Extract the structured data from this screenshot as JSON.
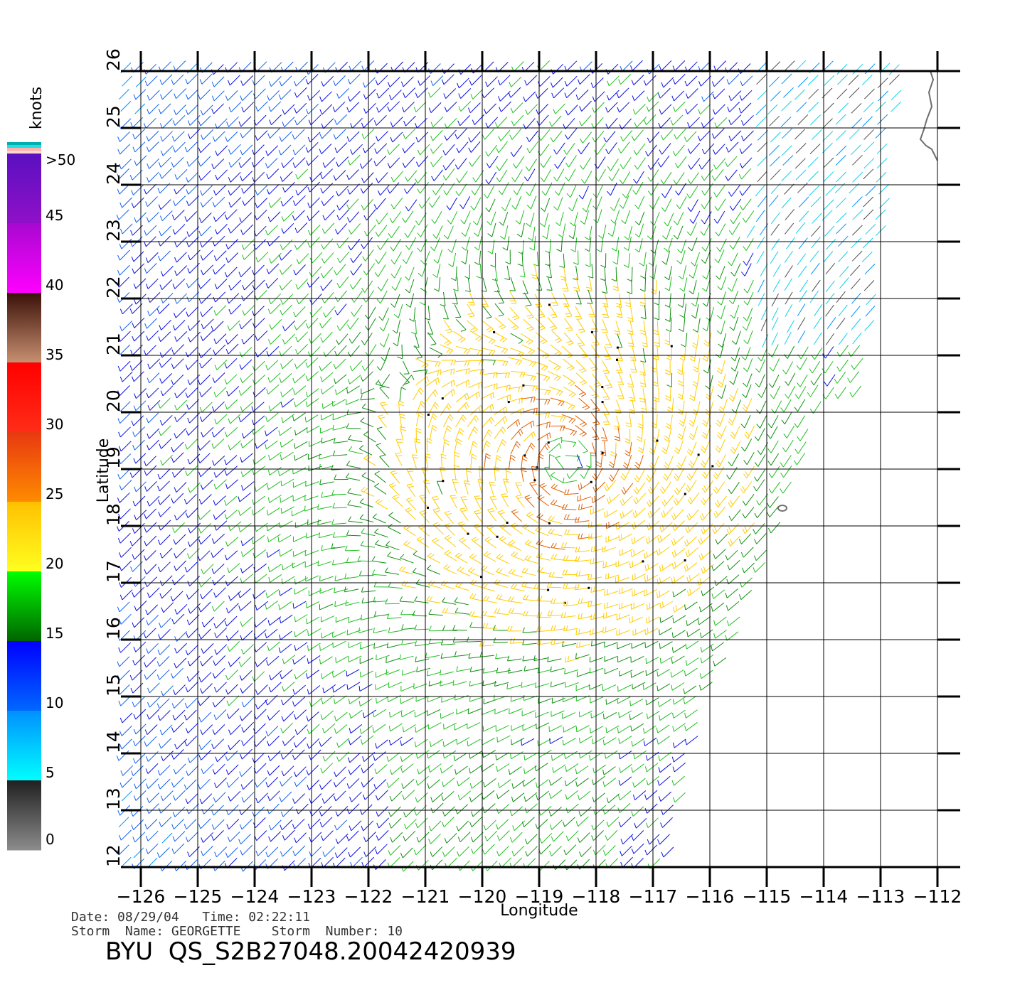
{
  "figure": {
    "xlabel": "Longitude",
    "ylabel": "Latitude",
    "lon_range": [
      -126,
      -112
    ],
    "lat_range": [
      12,
      26
    ],
    "lon_ticks": [
      "−126",
      "−125",
      "−124",
      "−123",
      "−122",
      "−121",
      "−120",
      "−119",
      "−118",
      "−117",
      "−116",
      "−115",
      "−114",
      "−113",
      "−112"
    ],
    "lat_ticks": [
      "12",
      "13",
      "14",
      "15",
      "16",
      "17",
      "18",
      "19",
      "20",
      "21",
      "22",
      "23",
      "24",
      "25",
      "26"
    ],
    "grid": true,
    "coastline_color": "#6e6e6e",
    "marker": "wind barbs",
    "storm_center": {
      "lon": -118.5,
      "lat": 19.1
    }
  },
  "colorbar": {
    "title": "knots",
    "labels": [
      ">50",
      "45",
      "40",
      "35",
      "30",
      "25",
      "20",
      "15",
      "10",
      "5",
      "0"
    ],
    "bands": [
      {
        "range": "45-50",
        "top": "#5a10c0",
        "bottom": "#9010c8"
      },
      {
        "range": "40-45",
        "top": "#a808d0",
        "bottom": "#ff00ff"
      },
      {
        "range": "35-40",
        "top": "#3a1008",
        "bottom": "#c89070"
      },
      {
        "range": "30-35",
        "top": "#ff0000",
        "bottom": "#ff2d18"
      },
      {
        "range": "25-30",
        "top": "#e83810",
        "bottom": "#ff8c00"
      },
      {
        "range": "20-25",
        "top": "#ffc000",
        "bottom": "#ffff20"
      },
      {
        "range": "15-20",
        "top": "#00ff00",
        "bottom": "#006400"
      },
      {
        "range": "10-15",
        "top": "#0000ff",
        "bottom": "#0068ff"
      },
      {
        "range": "5-10",
        "top": "#0090ff",
        "bottom": "#00ffff"
      },
      {
        "range": "0-5",
        "top": "#202020",
        "bottom": "#8c8c8c"
      }
    ],
    "overflow_swatches": [
      "#00b0b0",
      "#20e0e0",
      "#ffb0b0",
      "#ffd8c8"
    ]
  },
  "info": {
    "line1": "Date: 08/29/04   Time: 02:22:11",
    "line2": "Storm  Name: GEORGETTE    Storm  Number: 10",
    "product": "BYU  QS_S2B27048.20042420939"
  }
}
